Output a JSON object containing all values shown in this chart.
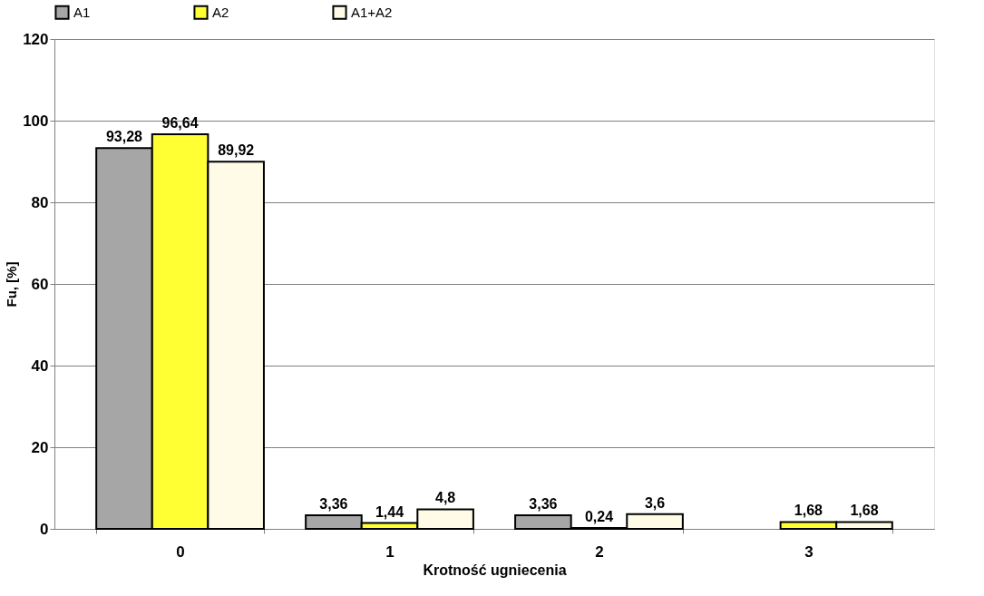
{
  "chart_data": {
    "type": "bar",
    "xlabel": "Krotność ugniecenia",
    "ylabel": "Fu, [%]",
    "categories": [
      "0",
      "1",
      "2",
      "3"
    ],
    "series": [
      {
        "name": "A1",
        "color": "#a6a6a6",
        "values": [
          93.28,
          3.36,
          3.36,
          null
        ],
        "value_labels": [
          "93,28",
          "3,36",
          "3,36",
          null
        ]
      },
      {
        "name": "A2",
        "color": "#ffff33",
        "values": [
          96.64,
          1.44,
          0.24,
          1.68
        ],
        "value_labels": [
          "96,64",
          "1,44",
          "0,24",
          "1,68"
        ]
      },
      {
        "name": "A1+A2",
        "color": "#fffbe6",
        "values": [
          89.92,
          4.8,
          3.6,
          1.68
        ],
        "value_labels": [
          "89,92",
          "4,8",
          "3,6",
          "1,68"
        ]
      }
    ],
    "ylim": [
      0,
      120
    ],
    "yticks": [
      0,
      20,
      40,
      60,
      80,
      100,
      120
    ],
    "grid": "y",
    "legend": "top"
  }
}
